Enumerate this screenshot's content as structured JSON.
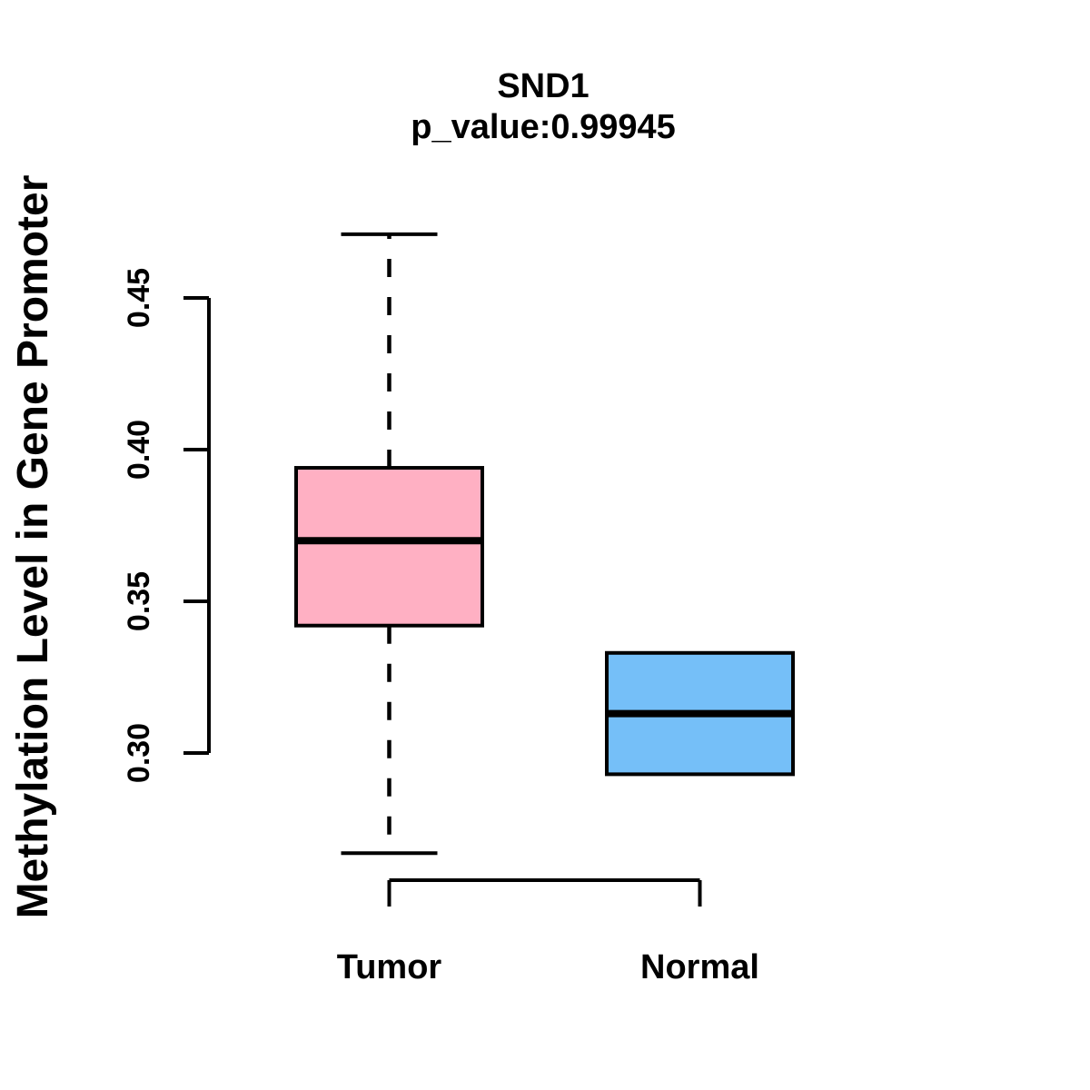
{
  "chart_data": {
    "type": "boxplot",
    "title": "SND1",
    "subtitle": "p_value:0.99945",
    "xlabel": "",
    "ylabel": "Methylation Level in Gene Promoter",
    "ylim": [
      0.3,
      0.45
    ],
    "ytick_values": [
      0.45,
      0.4,
      0.35,
      0.3
    ],
    "ytick_labels": [
      "0.45",
      "0.40",
      "0.35",
      "0.30"
    ],
    "grid": false,
    "legend": "none",
    "categories": [
      "Tumor",
      "Normal"
    ],
    "groups": [
      {
        "label": "Tumor",
        "fill": "#FFB0C3",
        "stats": {
          "whisker_low": 0.267,
          "q1": 0.342,
          "median": 0.37,
          "q3": 0.394,
          "whisker_high": 0.471
        }
      },
      {
        "label": "Normal",
        "fill": "#75BFF8",
        "stats": {
          "whisker_low": 0.293,
          "q1": 0.293,
          "median": 0.313,
          "q3": 0.333,
          "whisker_high": 0.333
        }
      }
    ],
    "colors": {
      "box_border": "#000000",
      "median": "#000000",
      "axis": "#000000",
      "text": "#000000",
      "background": "#FFFFFF"
    }
  }
}
